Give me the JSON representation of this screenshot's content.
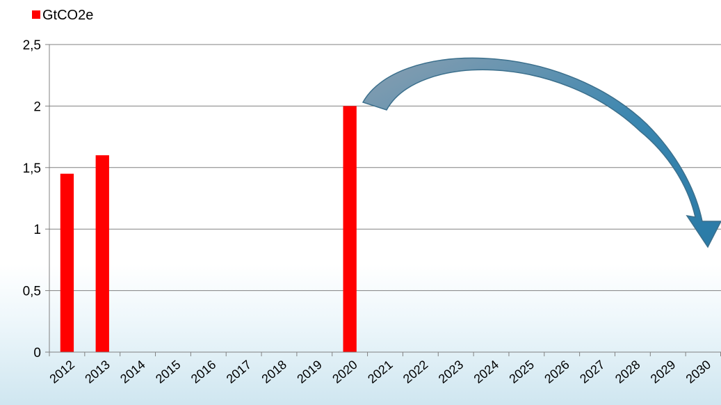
{
  "chart_data": {
    "type": "bar",
    "categories": [
      "2012",
      "2013",
      "2014",
      "2015",
      "2016",
      "2017",
      "2018",
      "2019",
      "2020",
      "2021",
      "2022",
      "2023",
      "2024",
      "2025",
      "2026",
      "2027",
      "2028",
      "2029",
      "2030"
    ],
    "series": [
      {
        "name": "GtCO2e",
        "values": [
          1.45,
          1.6,
          null,
          null,
          null,
          null,
          null,
          null,
          2.0,
          null,
          null,
          null,
          null,
          null,
          null,
          null,
          null,
          null,
          null
        ]
      }
    ],
    "ylim": [
      0,
      2.5
    ],
    "yticks": [
      "0",
      "0,5",
      "1",
      "1,5",
      "2",
      "2,5"
    ],
    "grid": true,
    "legend": "top-left",
    "colors": {
      "bar": "#ff0000",
      "grid": "#808080",
      "arrow": "#2f7fa8"
    },
    "annotations": [
      {
        "type": "curved-arrow",
        "from": "2020",
        "to": "2030"
      }
    ]
  }
}
